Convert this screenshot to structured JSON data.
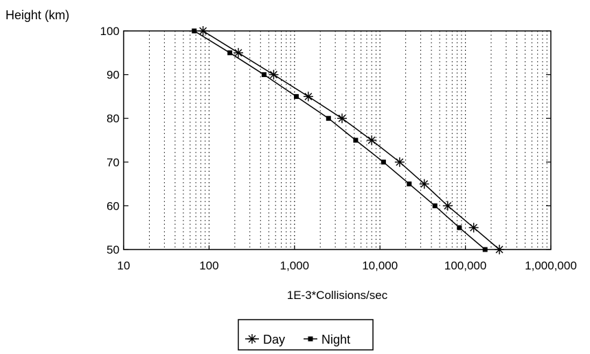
{
  "chart_data": {
    "type": "line",
    "ylabel": "Height (km)",
    "xlabel": "1E-3*Collisions/sec",
    "x_scale": "log",
    "xlim": [
      10,
      1000000
    ],
    "ylim": [
      50,
      100
    ],
    "x_ticks": [
      10,
      100,
      1000,
      10000,
      100000,
      1000000
    ],
    "x_tick_labels": [
      "10",
      "100",
      "1,000",
      "10,000",
      "100,000",
      "1,000,000"
    ],
    "y_ticks": [
      50,
      60,
      70,
      80,
      90,
      100
    ],
    "y_tick_labels": [
      "50",
      "60",
      "70",
      "80",
      "90",
      "100"
    ],
    "grid": "vertical dotted minor and major lines",
    "legend_position": "bottom-center",
    "series": [
      {
        "name": "Day",
        "marker": "asterisk",
        "color": "#000000",
        "points": [
          {
            "x": 85,
            "y": 100
          },
          {
            "x": 220,
            "y": 95
          },
          {
            "x": 570,
            "y": 90
          },
          {
            "x": 1450,
            "y": 85
          },
          {
            "x": 3600,
            "y": 80
          },
          {
            "x": 8000,
            "y": 75
          },
          {
            "x": 17000,
            "y": 70
          },
          {
            "x": 33000,
            "y": 65
          },
          {
            "x": 62000,
            "y": 60
          },
          {
            "x": 125000,
            "y": 55
          },
          {
            "x": 250000,
            "y": 50
          }
        ]
      },
      {
        "name": "Night",
        "marker": "square",
        "color": "#000000",
        "points": [
          {
            "x": 67,
            "y": 100
          },
          {
            "x": 175,
            "y": 95
          },
          {
            "x": 440,
            "y": 90
          },
          {
            "x": 1050,
            "y": 85
          },
          {
            "x": 2500,
            "y": 80
          },
          {
            "x": 5200,
            "y": 75
          },
          {
            "x": 11000,
            "y": 70
          },
          {
            "x": 22000,
            "y": 65
          },
          {
            "x": 44000,
            "y": 60
          },
          {
            "x": 85000,
            "y": 55
          },
          {
            "x": 170000,
            "y": 50
          }
        ]
      }
    ]
  }
}
